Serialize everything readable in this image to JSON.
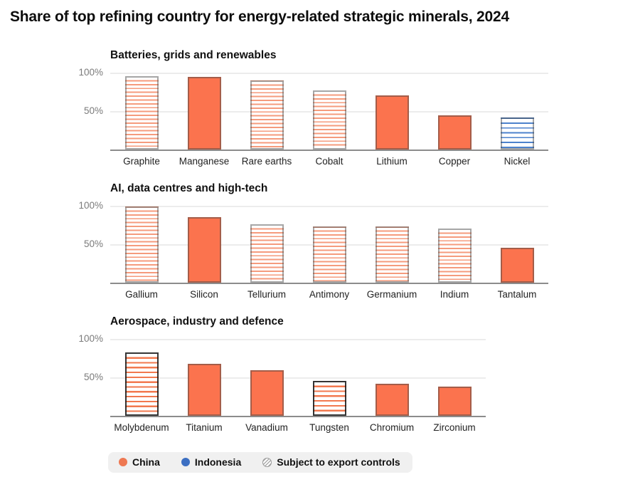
{
  "title": "Share of top refining country for energy-related strategic minerals, 2024",
  "colors": {
    "china": "#fb734e",
    "china_stripe": "#f59b7d",
    "indonesia": "#3c6fc2",
    "indonesia_stripe": "#4d82cc",
    "gridline": "#ececec",
    "baseline": "#8c8c8c",
    "axis_label": "#7b7b7b",
    "legend_background": "#f0f0f0"
  },
  "legend": {
    "items": [
      {
        "label": "China",
        "swatch": "china-dot"
      },
      {
        "label": "Indonesia",
        "swatch": "indonesia-dot"
      },
      {
        "label": "Subject to export controls",
        "swatch": "export-controls-dot"
      }
    ]
  },
  "chart_data": [
    {
      "type": "bar",
      "title": "Batteries, grids and renewables",
      "xlabel": "",
      "ylabel": "",
      "ylim": [
        0,
        100
      ],
      "yticks": [
        100,
        50
      ],
      "ytick_labels": [
        "100%",
        "50%"
      ],
      "grid": true,
      "bars": [
        {
          "label": "Graphite",
          "value": 95,
          "country": "china",
          "export_controls": true,
          "dark_border": false
        },
        {
          "label": "Manganese",
          "value": 94,
          "country": "china",
          "export_controls": false,
          "dark_border": false
        },
        {
          "label": "Rare earths",
          "value": 90,
          "country": "china",
          "export_controls": true,
          "dark_border": false
        },
        {
          "label": "Cobalt",
          "value": 77,
          "country": "china",
          "export_controls": true,
          "dark_border": false
        },
        {
          "label": "Lithium",
          "value": 70,
          "country": "china",
          "export_controls": false,
          "dark_border": false
        },
        {
          "label": "Copper",
          "value": 44,
          "country": "china",
          "export_controls": false,
          "dark_border": false
        },
        {
          "label": "Nickel",
          "value": 42,
          "country": "indonesia",
          "export_controls": true,
          "dark_border": false
        }
      ]
    },
    {
      "type": "bar",
      "title": "AI, data centres and high-tech",
      "xlabel": "",
      "ylabel": "",
      "ylim": [
        0,
        100
      ],
      "yticks": [
        100,
        50
      ],
      "ytick_labels": [
        "100%",
        "50%"
      ],
      "grid": true,
      "bars": [
        {
          "label": "Gallium",
          "value": 99,
          "country": "china",
          "export_controls": true,
          "dark_border": false
        },
        {
          "label": "Silicon",
          "value": 85,
          "country": "china",
          "export_controls": false,
          "dark_border": false
        },
        {
          "label": "Tellurium",
          "value": 76,
          "country": "china",
          "export_controls": true,
          "dark_border": false
        },
        {
          "label": "Antimony",
          "value": 73,
          "country": "china",
          "export_controls": true,
          "dark_border": false
        },
        {
          "label": "Germanium",
          "value": 73,
          "country": "china",
          "export_controls": true,
          "dark_border": false
        },
        {
          "label": "Indium",
          "value": 70,
          "country": "china",
          "export_controls": true,
          "dark_border": false
        },
        {
          "label": "Tantalum",
          "value": 45,
          "country": "china",
          "export_controls": false,
          "dark_border": false
        }
      ]
    },
    {
      "type": "bar",
      "title": "Aerospace, industry and defence",
      "xlabel": "",
      "ylabel": "",
      "ylim": [
        0,
        100
      ],
      "yticks": [
        100,
        50
      ],
      "ytick_labels": [
        "100%",
        "50%"
      ],
      "grid": true,
      "bars": [
        {
          "label": "Molybdenum",
          "value": 82,
          "country": "china",
          "export_controls": true,
          "dark_border": true
        },
        {
          "label": "Titanium",
          "value": 68,
          "country": "china",
          "export_controls": false,
          "dark_border": false
        },
        {
          "label": "Vanadium",
          "value": 59,
          "country": "china",
          "export_controls": false,
          "dark_border": false
        },
        {
          "label": "Tungsten",
          "value": 45,
          "country": "china",
          "export_controls": true,
          "dark_border": true
        },
        {
          "label": "Chromium",
          "value": 42,
          "country": "china",
          "export_controls": false,
          "dark_border": false
        },
        {
          "label": "Zirconium",
          "value": 38,
          "country": "china",
          "export_controls": false,
          "dark_border": false
        }
      ]
    }
  ]
}
